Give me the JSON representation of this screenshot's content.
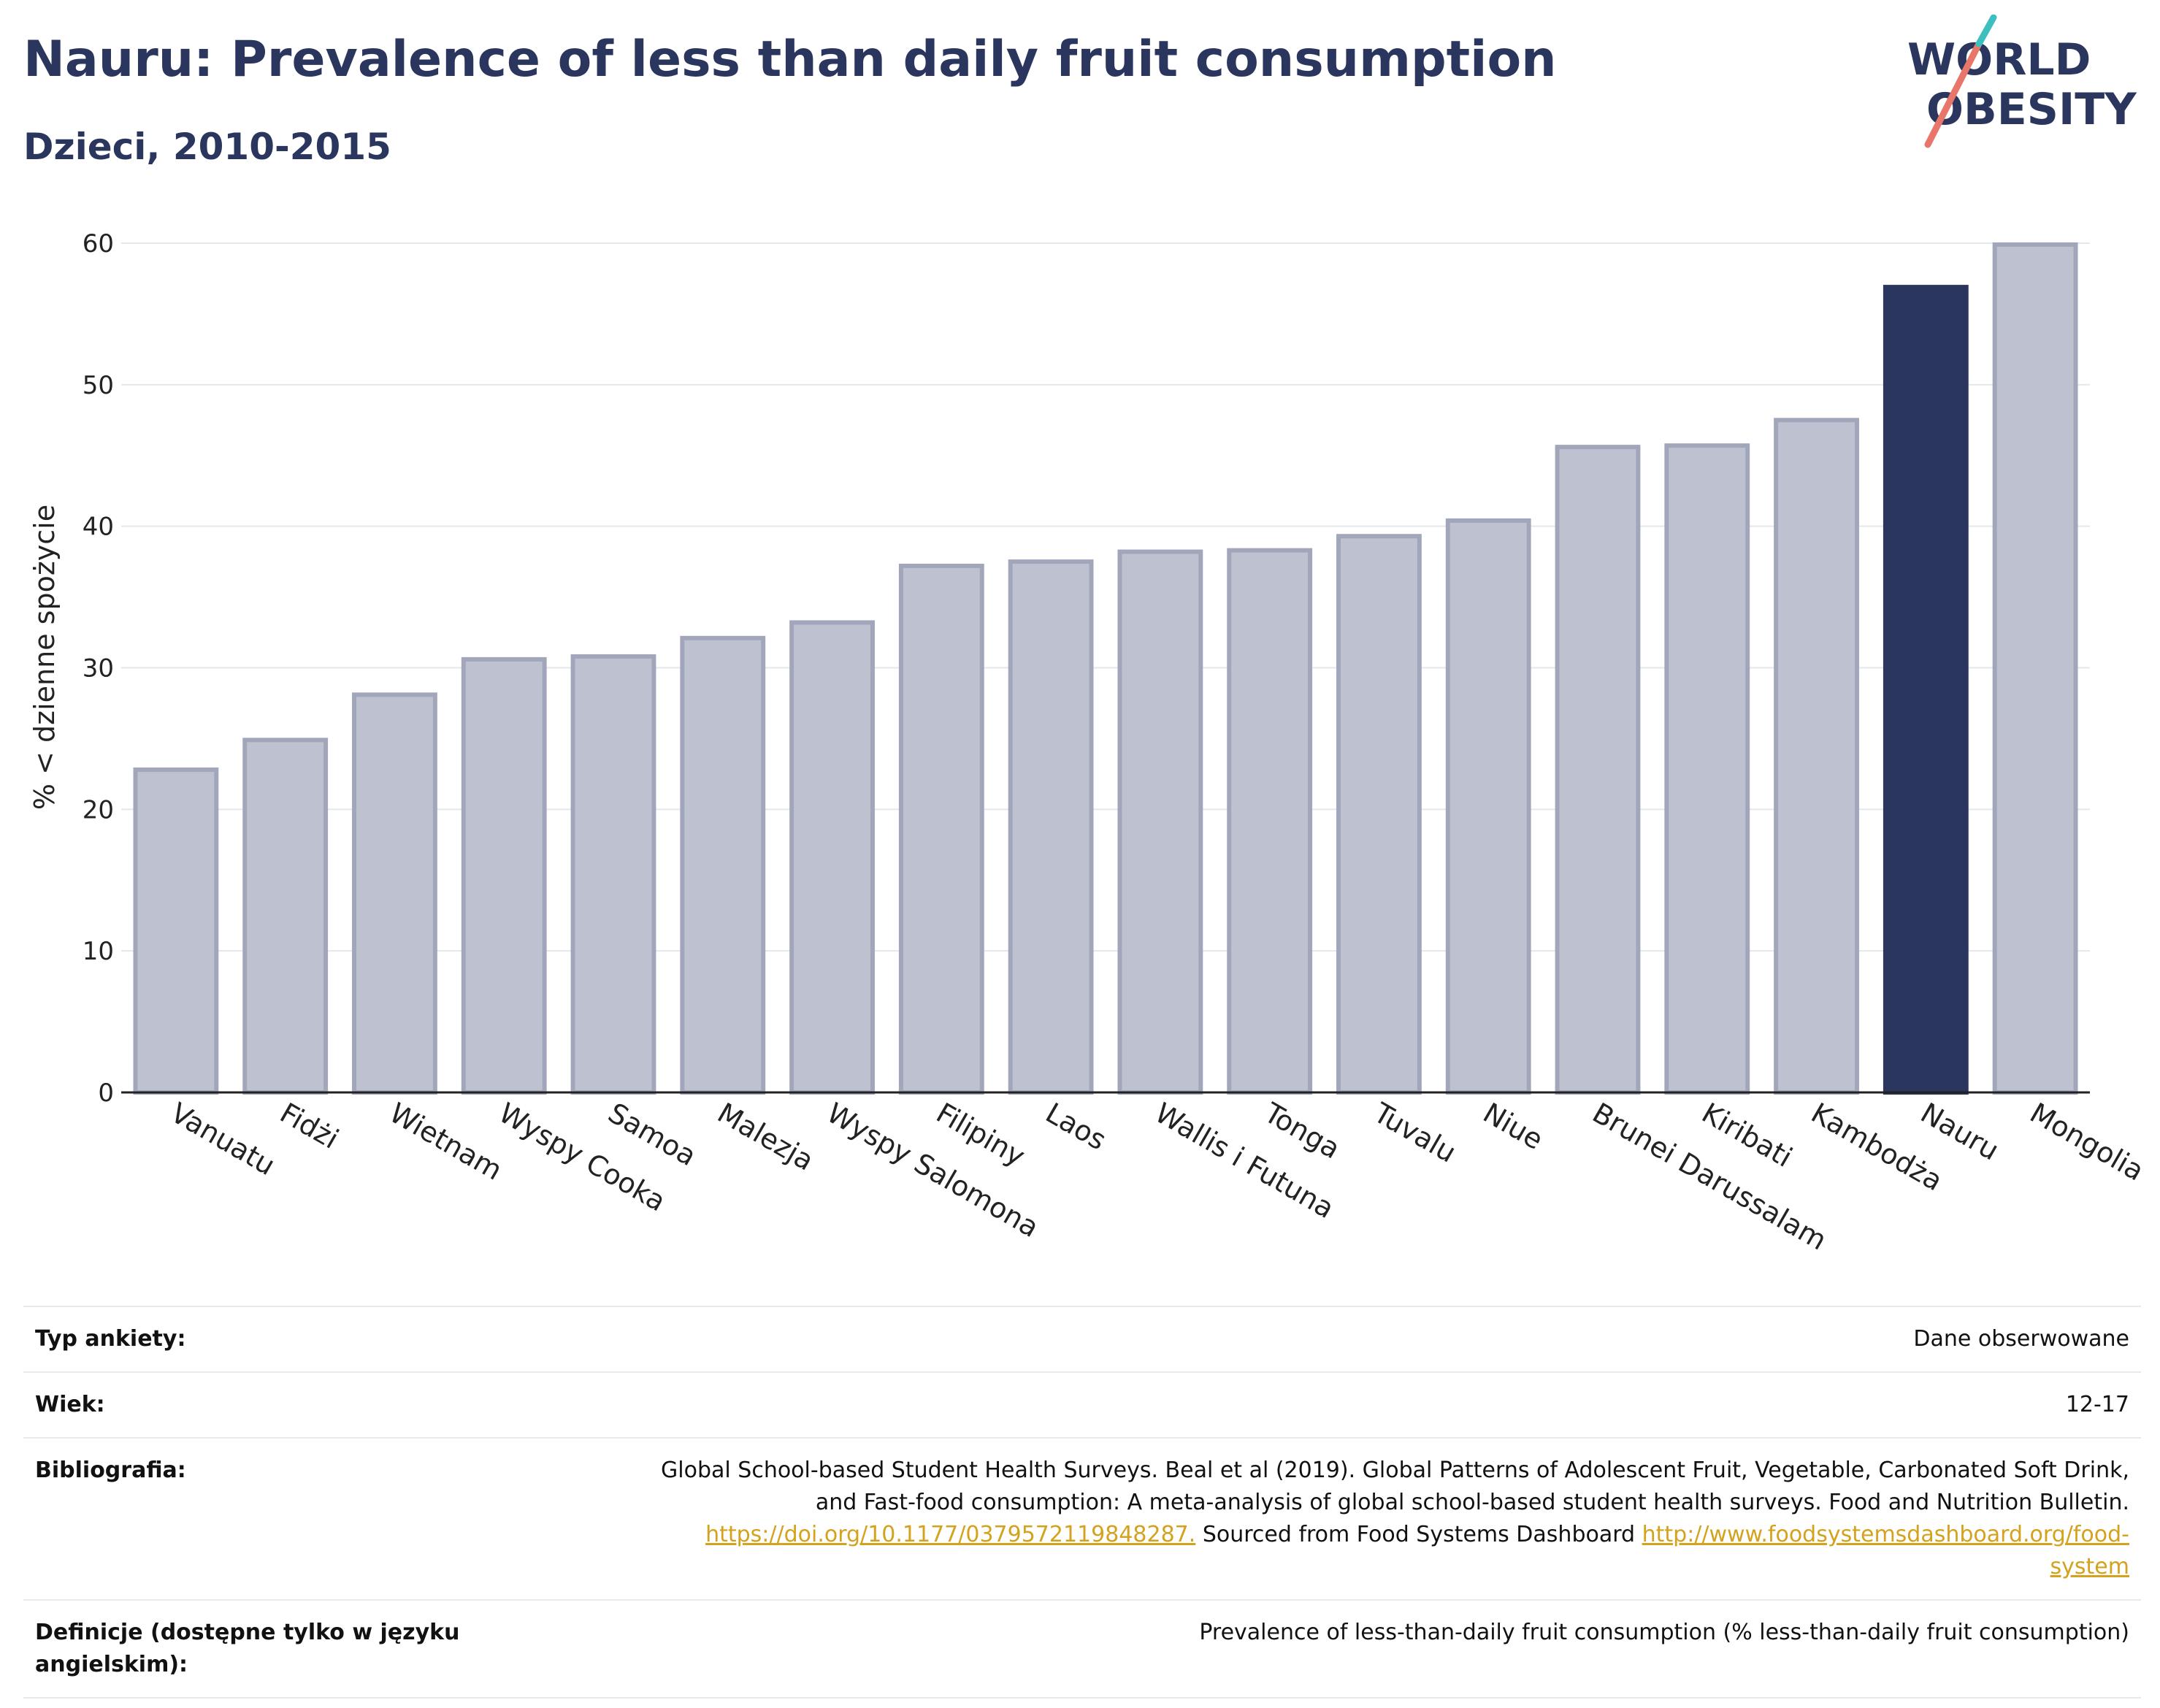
{
  "title": "Nauru: Prevalence of less than daily fruit consumption",
  "subtitle": "Dzieci, 2010-2015",
  "logo": {
    "line1": "WORLD",
    "line2": "OBESITY"
  },
  "chart_data": {
    "type": "bar",
    "ylabel": "% < dzienne spożycie",
    "ylim": [
      0,
      60
    ],
    "yticks": [
      "0",
      "10",
      "20",
      "30",
      "40",
      "50",
      "60"
    ],
    "grid": true,
    "categories": [
      "Vanuatu",
      "Fidżi",
      "Wietnam",
      "Wyspy Cooka",
      "Samoa",
      "Malezja",
      "Wyspy Salomona",
      "Filipiny",
      "Laos",
      "Wallis i Futuna",
      "Tonga",
      "Tuvalu",
      "Niue",
      "Brunei Darussalam",
      "Kiribati",
      "Kambodża",
      "Nauru",
      "Mongolia"
    ],
    "values": [
      22.8,
      24.9,
      28.1,
      30.6,
      30.8,
      32.1,
      33.2,
      37.2,
      37.5,
      38.2,
      38.3,
      39.3,
      40.4,
      45.6,
      45.7,
      47.5,
      56.9,
      59.9
    ],
    "highlight": "Nauru",
    "colors": {
      "bar": "#bec2d0",
      "bar_border": "#a2a6bb",
      "highlight": "#2b365e"
    }
  },
  "meta": {
    "survey_label": "Typ ankiety:",
    "survey_value": "Dane obserwowane",
    "age_label": "Wiek:",
    "age_value": "12-17",
    "bib_label": "Bibliografia:",
    "bib_line1": "Global School-based Student Health Surveys. Beal et al (2019). Global Patterns of Adolescent Fruit, Vegetable, Carbonated Soft Drink,",
    "bib_line2": "and Fast-food consumption: A meta-analysis of global school-based student health surveys. Food and Nutrition Bulletin.",
    "bib_link1": "https://doi.org/10.1177/0379572119848287.",
    "bib_mid": " Sourced from Food Systems Dashboard ",
    "bib_link2a": "http://www.foodsystemsdashboard.org/food-",
    "bib_link2b": "system",
    "def_label": "Definicje (dostępne tylko w języku angielskim):",
    "def_value": "Prevalence of less-than-daily fruit consumption (% less-than-daily fruit consumption)"
  }
}
